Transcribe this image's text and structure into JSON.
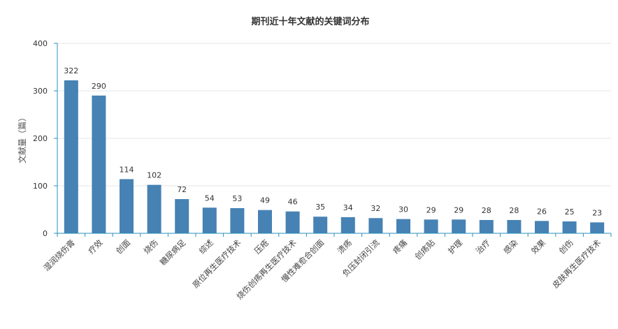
{
  "chart_data": {
    "type": "bar",
    "title": "期刊近十年文献的关键词分布",
    "xlabel": "",
    "ylabel": "文献量（篇）",
    "ylim": [
      0,
      400
    ],
    "yticks": [
      0,
      100,
      200,
      300,
      400
    ],
    "grid": true,
    "bar_color": "#4682b4",
    "axis_color": "#2a8fbd",
    "categories": [
      "湿润烧伤膏",
      "疗效",
      "创面",
      "烧伤",
      "糖尿病足",
      "综述",
      "原位再生医疗技术",
      "压疮",
      "烧伤创疡再生医疗技术",
      "慢性难愈合创面",
      "溃疡",
      "负压封闭引流",
      "疼痛",
      "创疡贴",
      "护理",
      "治疗",
      "感染",
      "效果",
      "创伤",
      "皮肤再生医疗技术"
    ],
    "values": [
      322,
      290,
      114,
      102,
      72,
      54,
      53,
      49,
      46,
      35,
      34,
      32,
      30,
      29,
      29,
      28,
      28,
      26,
      25,
      23
    ]
  }
}
